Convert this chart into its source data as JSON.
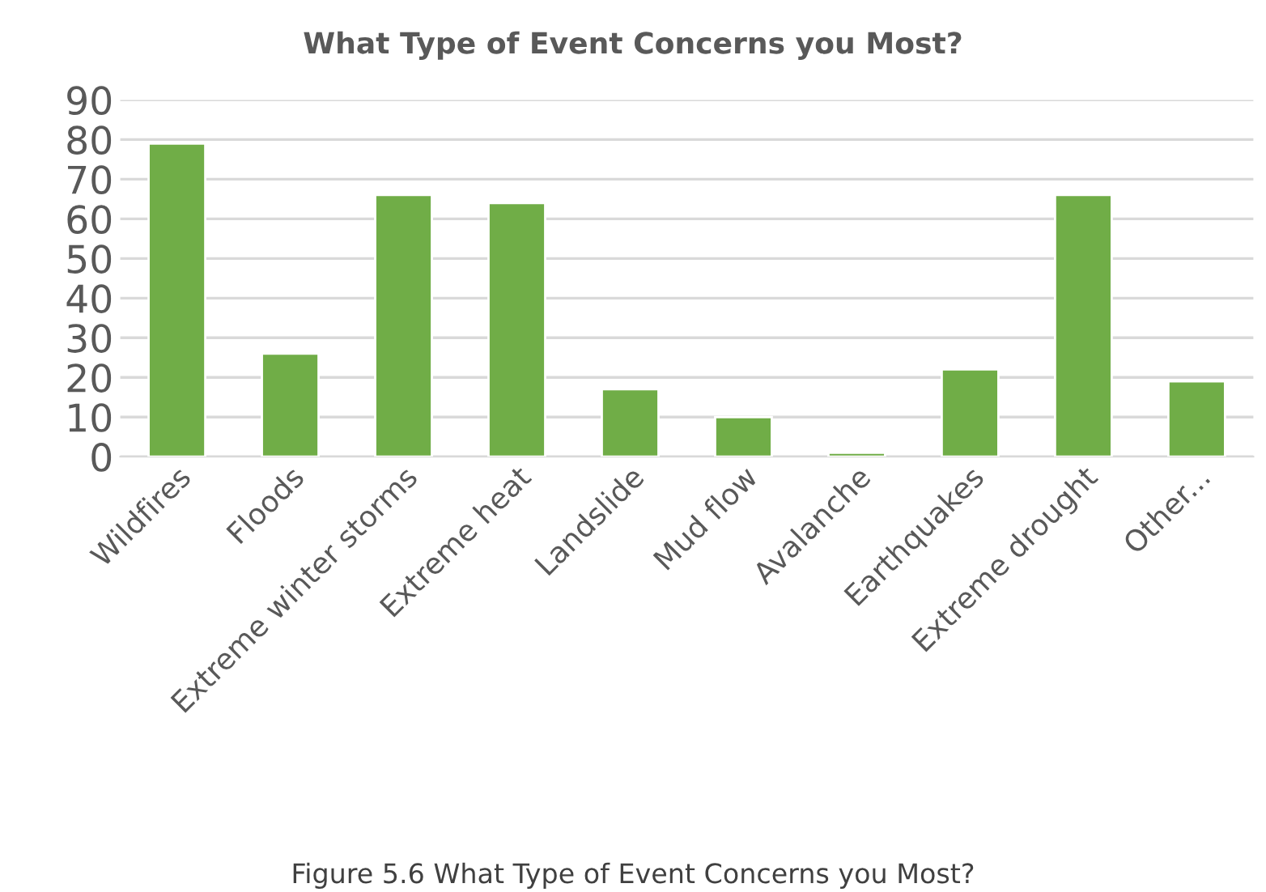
{
  "chart_data": {
    "type": "bar",
    "title": "What Type of Event Concerns you Most?",
    "categories": [
      "Wildfires",
      "Floods",
      "Extreme winter storms",
      "Extreme heat",
      "Landslide",
      "Mud flow",
      "Avalanche",
      "Earthquakes",
      "Extreme drought",
      "Other..."
    ],
    "values": [
      79,
      26,
      66,
      64,
      17,
      10,
      1,
      22,
      66,
      19
    ],
    "color": "#70ad47",
    "ylim": [
      0,
      90
    ],
    "yticks": [
      0,
      10,
      20,
      30,
      40,
      50,
      60,
      70,
      80,
      90
    ],
    "grid": "y",
    "annotations": [
      "Figure 5.6 What Type of Event Concerns you Most?"
    ]
  }
}
